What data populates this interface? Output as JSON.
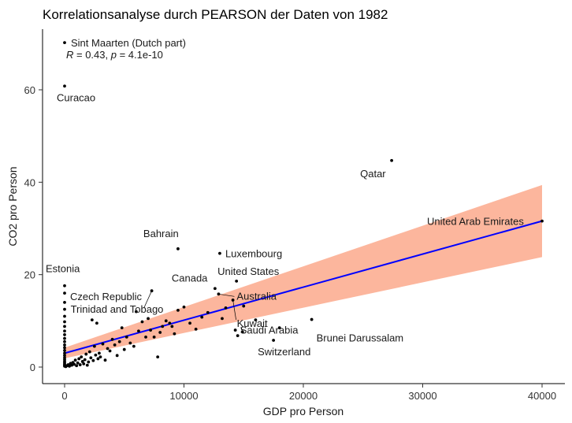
{
  "chart_data": {
    "type": "scatter",
    "title": "Korrelationsanalyse durch PEARSON der Daten von 1982",
    "xlabel": "GDP pro Person",
    "ylabel": "CO2 pro Person",
    "xlim": [
      -2000,
      42000
    ],
    "ylim": [
      -3,
      73
    ],
    "x_ticks": [
      0,
      10000,
      20000,
      30000,
      40000
    ],
    "y_ticks": [
      0,
      20,
      40,
      60
    ],
    "grid": false,
    "annotation": {
      "r_label": "R",
      "r_value": " = 0.43, ",
      "p_label": "p",
      "p_value": " = 4.1e-10",
      "x": 0,
      "y": 67.5
    },
    "regression": {
      "intercept": 3.0,
      "slope": 0.000715,
      "x_range": [
        0,
        40000
      ],
      "ci_lower": [
        [
          0,
          1.9
        ],
        [
          40000,
          23.8
        ]
      ],
      "ci_upper": [
        [
          0,
          4.2
        ],
        [
          40000,
          39.4
        ]
      ],
      "line_color": "#0000ff",
      "band_color": "#fa8f68"
    },
    "labeled_points": [
      {
        "name": "Sint Maarten (Dutch part)",
        "x": 0,
        "y": 70.2
      },
      {
        "name": "Curacao",
        "x": 0,
        "y": 60.8
      },
      {
        "name": "Qatar",
        "x": 27400,
        "y": 44.7
      },
      {
        "name": "United Arab Emirates",
        "x": 40000,
        "y": 31.6
      },
      {
        "name": "Bahrain",
        "x": 9500,
        "y": 25.6
      },
      {
        "name": "Luxembourg",
        "x": 13000,
        "y": 24.6
      },
      {
        "name": "Estonia",
        "x": 0,
        "y": 17.6
      },
      {
        "name": "United States",
        "x": 14400,
        "y": 18.6
      },
      {
        "name": "Czech Republic",
        "x": 0,
        "y": 16.0
      },
      {
        "name": "Canada",
        "x": 12600,
        "y": 17.0
      },
      {
        "name": "Australia",
        "x": 12900,
        "y": 15.8
      },
      {
        "name": "Trinidad and Tobago",
        "x": 7300,
        "y": 16.5
      },
      {
        "name": "Kuwait",
        "x": 14100,
        "y": 14.5
      },
      {
        "name": "Saudi Arabia",
        "x": 14900,
        "y": 7.6
      },
      {
        "name": "Brunei Darussalam",
        "x": 20700,
        "y": 10.3
      },
      {
        "name": "Switzerland",
        "x": 17500,
        "y": 5.8
      }
    ],
    "points": [
      [
        0,
        14.0
      ],
      [
        0,
        12.5
      ],
      [
        0,
        11.0
      ],
      [
        0,
        9.8
      ],
      [
        0,
        8.8
      ],
      [
        0,
        7.8
      ],
      [
        0,
        7.0
      ],
      [
        0,
        6.2
      ],
      [
        0,
        5.5
      ],
      [
        0,
        4.8
      ],
      [
        0,
        4.2
      ],
      [
        0,
        3.6
      ],
      [
        0,
        3.0
      ],
      [
        0,
        2.5
      ],
      [
        0,
        2.0
      ],
      [
        0,
        1.6
      ],
      [
        0,
        1.2
      ],
      [
        0,
        0.9
      ],
      [
        0,
        0.6
      ],
      [
        0,
        0.4
      ],
      [
        0,
        0.2
      ],
      [
        100,
        0.1
      ],
      [
        200,
        0.3
      ],
      [
        300,
        0.5
      ],
      [
        400,
        0.2
      ],
      [
        500,
        0.8
      ],
      [
        600,
        0.4
      ],
      [
        700,
        1.0
      ],
      [
        800,
        0.6
      ],
      [
        900,
        1.5
      ],
      [
        1000,
        0.3
      ],
      [
        1100,
        0.9
      ],
      [
        1200,
        1.8
      ],
      [
        1300,
        0.5
      ],
      [
        1400,
        2.2
      ],
      [
        1500,
        1.2
      ],
      [
        1600,
        0.7
      ],
      [
        1700,
        1.6
      ],
      [
        1800,
        2.8
      ],
      [
        1900,
        0.4
      ],
      [
        2000,
        1.1
      ],
      [
        2100,
        3.3
      ],
      [
        2200,
        2.0
      ],
      [
        2300,
        10.2
      ],
      [
        2400,
        1.4
      ],
      [
        2500,
        4.5
      ],
      [
        2600,
        2.6
      ],
      [
        2700,
        9.5
      ],
      [
        2800,
        1.8
      ],
      [
        2900,
        3.0
      ],
      [
        3000,
        2.2
      ],
      [
        3200,
        5.0
      ],
      [
        3400,
        1.5
      ],
      [
        3600,
        4.0
      ],
      [
        3800,
        3.5
      ],
      [
        4000,
        6.0
      ],
      [
        4200,
        4.8
      ],
      [
        4400,
        2.5
      ],
      [
        4600,
        5.5
      ],
      [
        4800,
        8.5
      ],
      [
        5000,
        3.8
      ],
      [
        5200,
        6.5
      ],
      [
        5500,
        5.2
      ],
      [
        5800,
        4.5
      ],
      [
        6000,
        12.0
      ],
      [
        6200,
        7.8
      ],
      [
        6500,
        9.8
      ],
      [
        6800,
        6.5
      ],
      [
        7000,
        10.5
      ],
      [
        7200,
        8.0
      ],
      [
        7500,
        6.5
      ],
      [
        7800,
        2.2
      ],
      [
        8000,
        7.5
      ],
      [
        8200,
        8.8
      ],
      [
        8500,
        10.0
      ],
      [
        8800,
        9.5
      ],
      [
        9000,
        8.8
      ],
      [
        9200,
        7.2
      ],
      [
        9500,
        12.3
      ],
      [
        10000,
        13.0
      ],
      [
        10500,
        9.5
      ],
      [
        11000,
        8.2
      ],
      [
        11500,
        10.8
      ],
      [
        12000,
        11.8
      ],
      [
        13200,
        10.5
      ],
      [
        13500,
        12.8
      ],
      [
        14300,
        8.0
      ],
      [
        14500,
        6.8
      ],
      [
        15000,
        13.2
      ],
      [
        16000,
        10.2
      ],
      [
        18000,
        8.5
      ]
    ],
    "point_color": "#000000"
  }
}
